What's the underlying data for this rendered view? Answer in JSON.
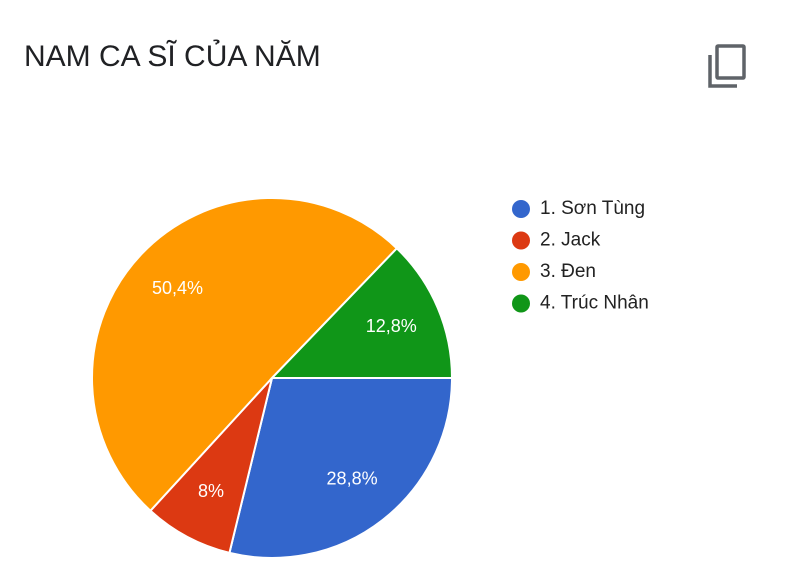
{
  "chart_data": {
    "type": "pie",
    "title": "NAM CA SĨ CỦA NĂM",
    "categories": [
      "1. Sơn Tùng",
      "2. Jack",
      "3. Đen",
      "4. Trúc Nhân"
    ],
    "values": [
      28.8,
      8,
      50.4,
      12.8
    ],
    "value_labels": [
      "28,8%",
      "8%",
      "50,4%",
      "12,8%"
    ],
    "colors": [
      "#3366cc",
      "#dc3912",
      "#ff9900",
      "#109618"
    ]
  }
}
